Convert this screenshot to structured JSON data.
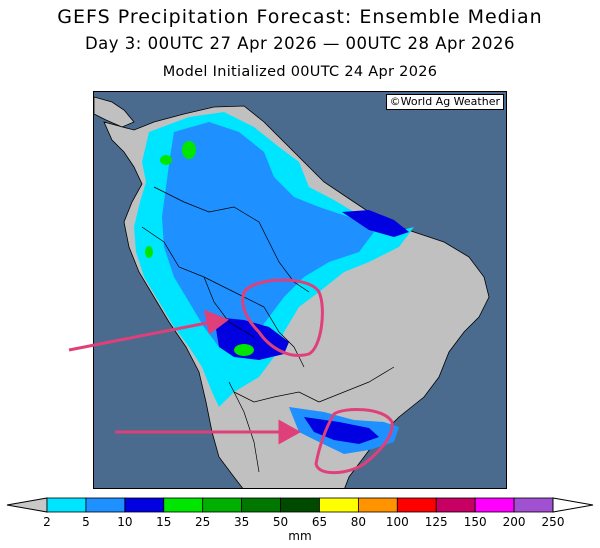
{
  "title": "GEFS Precipitation Forecast: Ensemble Median",
  "subtitle": "Day 3: 00UTC 27 Apr 2026 — 00UTC 28 Apr 2026",
  "init_line": "Model Initialized 00UTC 24 Apr 2026",
  "credit": "©World Ag Weather",
  "colorbar": {
    "unit": "mm",
    "ticks": [
      "2",
      "5",
      "10",
      "15",
      "25",
      "35",
      "50",
      "65",
      "80",
      "100",
      "125",
      "150",
      "200",
      "250"
    ],
    "colors": [
      "#c8c8c8",
      "#00e5ff",
      "#1e90ff",
      "#0000e0",
      "#00e600",
      "#00b000",
      "#007800",
      "#004a00",
      "#ffff00",
      "#ff9400",
      "#ff0000",
      "#c80064",
      "#ff00ff",
      "#a050d0",
      "#ffffff"
    ]
  },
  "colors": {
    "ocean": "#4a6a8e",
    "dry_land": "#c0c0c0",
    "annotation": "#e0407a"
  }
}
